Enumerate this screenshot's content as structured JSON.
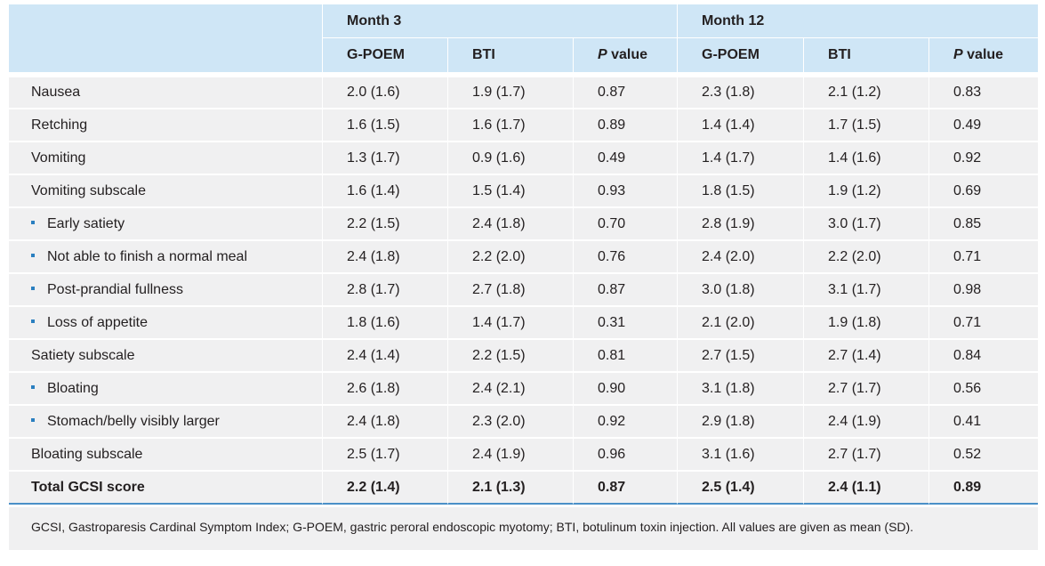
{
  "header": {
    "groups": [
      "Month 3",
      "Month 12"
    ],
    "subcols": [
      {
        "label": "G-POEM"
      },
      {
        "label": "BTI"
      },
      {
        "p": "P",
        "rest": " value"
      },
      {
        "label": "G-POEM"
      },
      {
        "label": "BTI"
      },
      {
        "p": "P",
        "rest": " value"
      }
    ]
  },
  "rows": [
    {
      "label": "Nausea",
      "bullet": false,
      "cells": [
        "2.0 (1.6)",
        "1.9 (1.7)",
        "0.87",
        "2.3 (1.8)",
        "2.1 (1.2)",
        "0.83"
      ]
    },
    {
      "label": "Retching",
      "bullet": false,
      "cells": [
        "1.6 (1.5)",
        "1.6 (1.7)",
        "0.89",
        "1.4 (1.4)",
        "1.7 (1.5)",
        "0.49"
      ]
    },
    {
      "label": "Vomiting",
      "bullet": false,
      "cells": [
        "1.3 (1.7)",
        "0.9 (1.6)",
        "0.49",
        "1.4 (1.7)",
        "1.4 (1.6)",
        "0.92"
      ]
    },
    {
      "label": "Vomiting subscale",
      "bullet": false,
      "cells": [
        "1.6 (1.4)",
        "1.5 (1.4)",
        "0.93",
        "1.8 (1.5)",
        "1.9 (1.2)",
        "0.69"
      ]
    },
    {
      "label": "Early satiety",
      "bullet": true,
      "cells": [
        "2.2 (1.5)",
        "2.4 (1.8)",
        "0.70",
        "2.8 (1.9)",
        "3.0 (1.7)",
        "0.85"
      ]
    },
    {
      "label": "Not able to finish a normal meal",
      "bullet": true,
      "cells": [
        "2.4 (1.8)",
        "2.2 (2.0)",
        "0.76",
        "2.4 (2.0)",
        "2.2 (2.0)",
        "0.71"
      ]
    },
    {
      "label": "Post-prandial fullness",
      "bullet": true,
      "cells": [
        "2.8 (1.7)",
        "2.7 (1.8)",
        "0.87",
        "3.0 (1.8)",
        "3.1 (1.7)",
        "0.98"
      ]
    },
    {
      "label": "Loss of appetite",
      "bullet": true,
      "cells": [
        "1.8 (1.6)",
        "1.4 (1.7)",
        "0.31",
        "2.1 (2.0)",
        "1.9 (1.8)",
        "0.71"
      ]
    },
    {
      "label": "Satiety subscale",
      "bullet": false,
      "cells": [
        "2.4 (1.4)",
        "2.2 (1.5)",
        "0.81",
        "2.7 (1.5)",
        "2.7 (1.4)",
        "0.84"
      ]
    },
    {
      "label": "Bloating",
      "bullet": true,
      "cells": [
        "2.6 (1.8)",
        "2.4 (2.1)",
        "0.90",
        "3.1 (1.8)",
        "2.7 (1.7)",
        "0.56"
      ]
    },
    {
      "label": "Stomach/belly visibly larger",
      "bullet": true,
      "cells": [
        "2.4 (1.8)",
        "2.3 (2.0)",
        "0.92",
        "2.9 (1.8)",
        "2.4 (1.9)",
        "0.41"
      ]
    },
    {
      "label": "Bloating subscale",
      "bullet": false,
      "cells": [
        "2.5 (1.7)",
        "2.4 (1.9)",
        "0.96",
        "3.1 (1.6)",
        "2.7 (1.7)",
        "0.52"
      ]
    }
  ],
  "total": {
    "label": "Total GCSI score",
    "cells": [
      "2.2 (1.4)",
      "2.1 (1.3)",
      "0.87",
      "2.5 (1.4)",
      "2.4 (1.1)",
      "0.89"
    ]
  },
  "footnote": "GCSI, Gastroparesis Cardinal Symptom Index; G-POEM, gastric peroral endoscopic myotomy; BTI, botulinum toxin injection. All values are given as mean (SD).",
  "colors": {
    "header_bg": "#cfe6f6",
    "row_bg": "#f0f0f1",
    "bullet": "#2a7fc0",
    "rule": "#4a90c8"
  }
}
